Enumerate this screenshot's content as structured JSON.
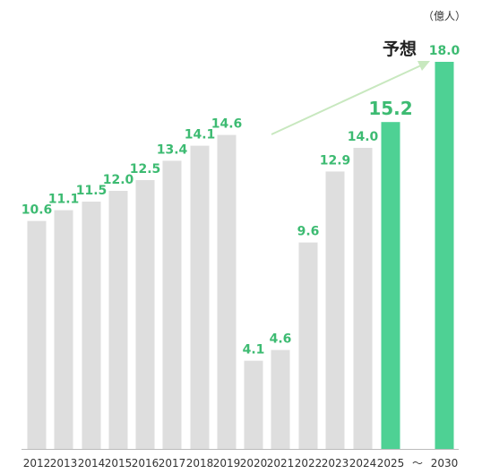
{
  "chart_data": {
    "type": "bar",
    "unit_label": "（億人）",
    "forecast_label": "予想",
    "break_symbol": "～",
    "categories": [
      "2012",
      "2013",
      "2014",
      "2015",
      "2016",
      "2017",
      "2018",
      "2019",
      "2020",
      "2021",
      "2022",
      "2023",
      "2024",
      "2025",
      "2030"
    ],
    "values": [
      10.6,
      11.1,
      11.5,
      12.0,
      12.5,
      13.4,
      14.1,
      14.6,
      4.1,
      4.6,
      9.6,
      12.9,
      14.0,
      15.2,
      18.0
    ],
    "value_labels": [
      "10.6",
      "11.1",
      "11.5",
      "12.0",
      "12.5",
      "13.4",
      "14.1",
      "14.6",
      "4.1",
      "4.6",
      "9.6",
      "12.9",
      "14.0",
      "15.2",
      "18.0"
    ],
    "highlighted": [
      "2025",
      "2030"
    ],
    "ylim": [
      0,
      18.0
    ],
    "grid": false,
    "colors": {
      "bar": "#dedede",
      "highlight": "#4ed194",
      "label": "#3dbb72",
      "arrow": "#c8e8bf",
      "axis": "#bbbbbb"
    }
  }
}
